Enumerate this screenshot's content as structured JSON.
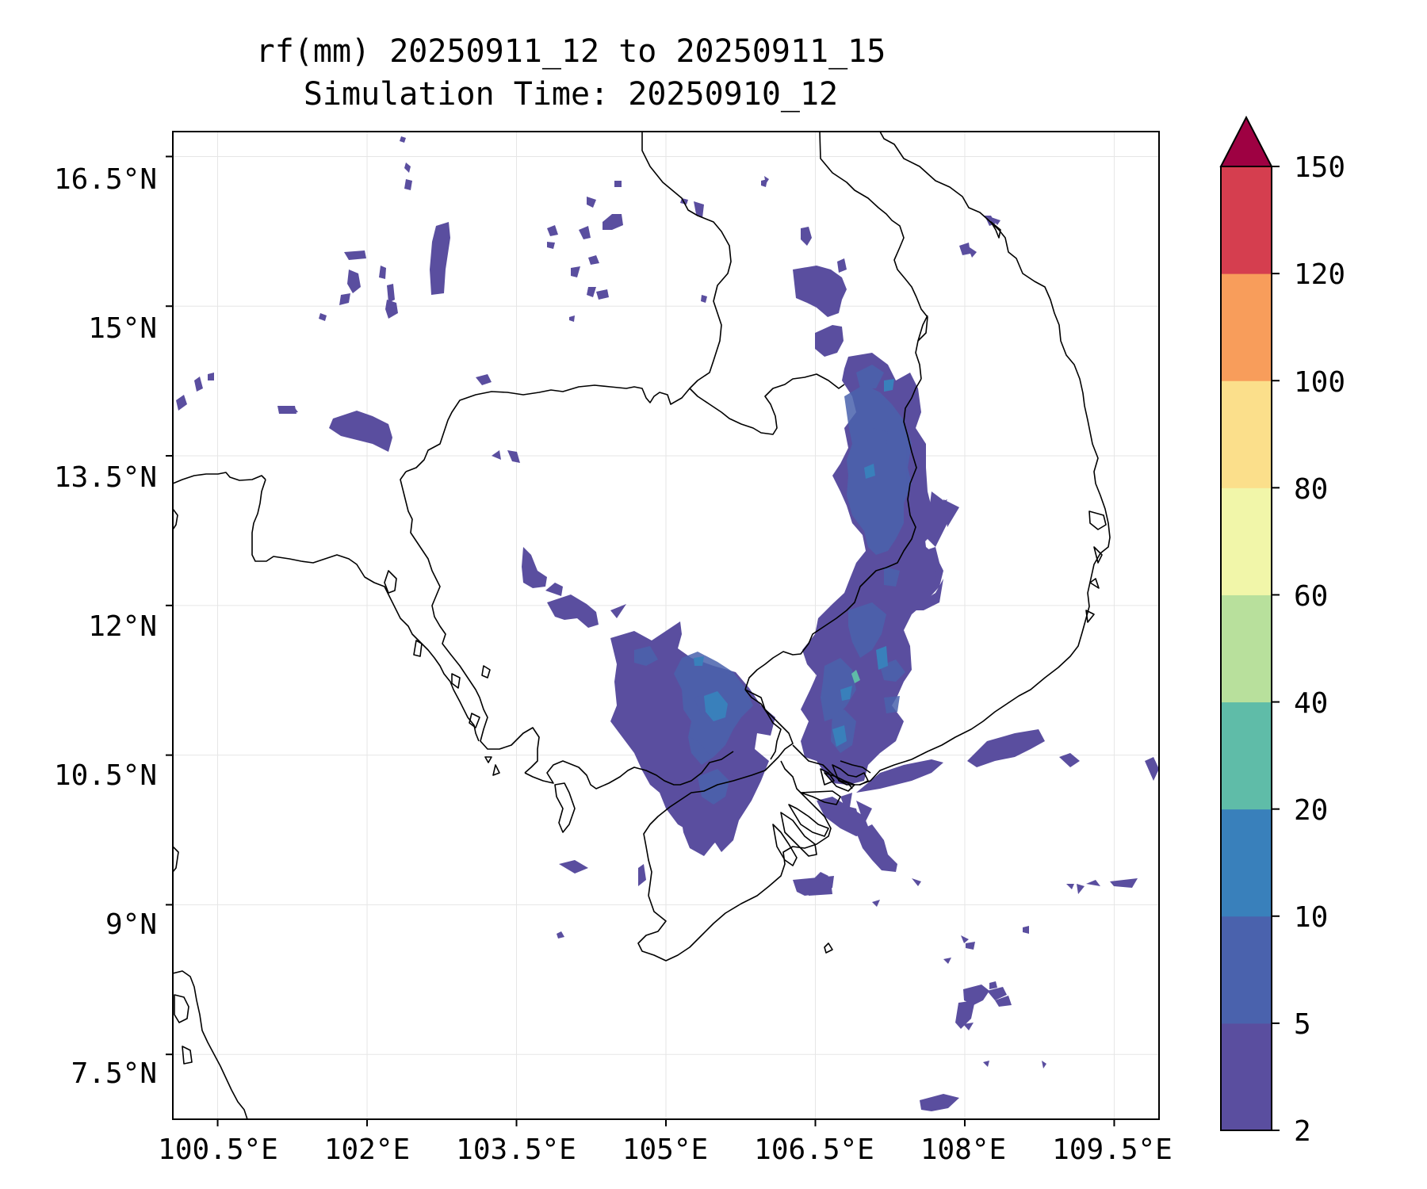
{
  "title": {
    "line1": "rf(mm) 20250911_12 to 20250911_15",
    "line2": "Simulation Time: 20250910_12"
  },
  "map": {
    "lon_range": [
      100.05,
      109.95
    ],
    "lat_range": [
      6.85,
      16.75
    ],
    "lon_ticks": [
      "100.5°E",
      "102°E",
      "103.5°E",
      "105°E",
      "106.5°E",
      "108°E",
      "109.5°E"
    ],
    "lat_ticks": [
      "16.5°N",
      "15°N",
      "13.5°N",
      "12°N",
      "10.5°N",
      "9°N",
      "7.5°N"
    ]
  },
  "colorbar": {
    "levels": [
      "2",
      "5",
      "10",
      "20",
      "40",
      "60",
      "80",
      "100",
      "120",
      "150"
    ],
    "colors": [
      "#5a4e9f",
      "#4a62ad",
      "#3980bb",
      "#5fbca8",
      "#b8e09c",
      "#f1f6a9",
      "#fbdf8b",
      "#f89d5b",
      "#d53e4f"
    ],
    "extend_color": "#9e0142",
    "extend": "max"
  },
  "chart_data": {
    "type": "heatmap",
    "title": "rf(mm) 20250911_12 to 20250911_15\nSimulation Time: 20250910_12",
    "xlabel": "",
    "ylabel": "",
    "xlim": [
      100.05,
      109.95
    ],
    "ylim": [
      6.85,
      16.75
    ],
    "colorbar_levels": [
      2,
      5,
      10,
      20,
      40,
      60,
      80,
      100,
      120,
      150
    ],
    "colorbar_extend": "max",
    "grid": true
  }
}
